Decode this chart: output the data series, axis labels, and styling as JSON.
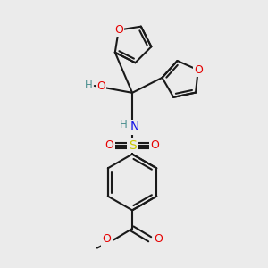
{
  "bg_color": "#ebebeb",
  "bond_color": "#1a1a1a",
  "bond_width": 1.5,
  "atom_colors": {
    "O": "#e60000",
    "N": "#1414e6",
    "S": "#c8c800",
    "H": "#4a8f8f",
    "C": "#1a1a1a"
  },
  "fs": 8.5,
  "fs_small": 7.5
}
